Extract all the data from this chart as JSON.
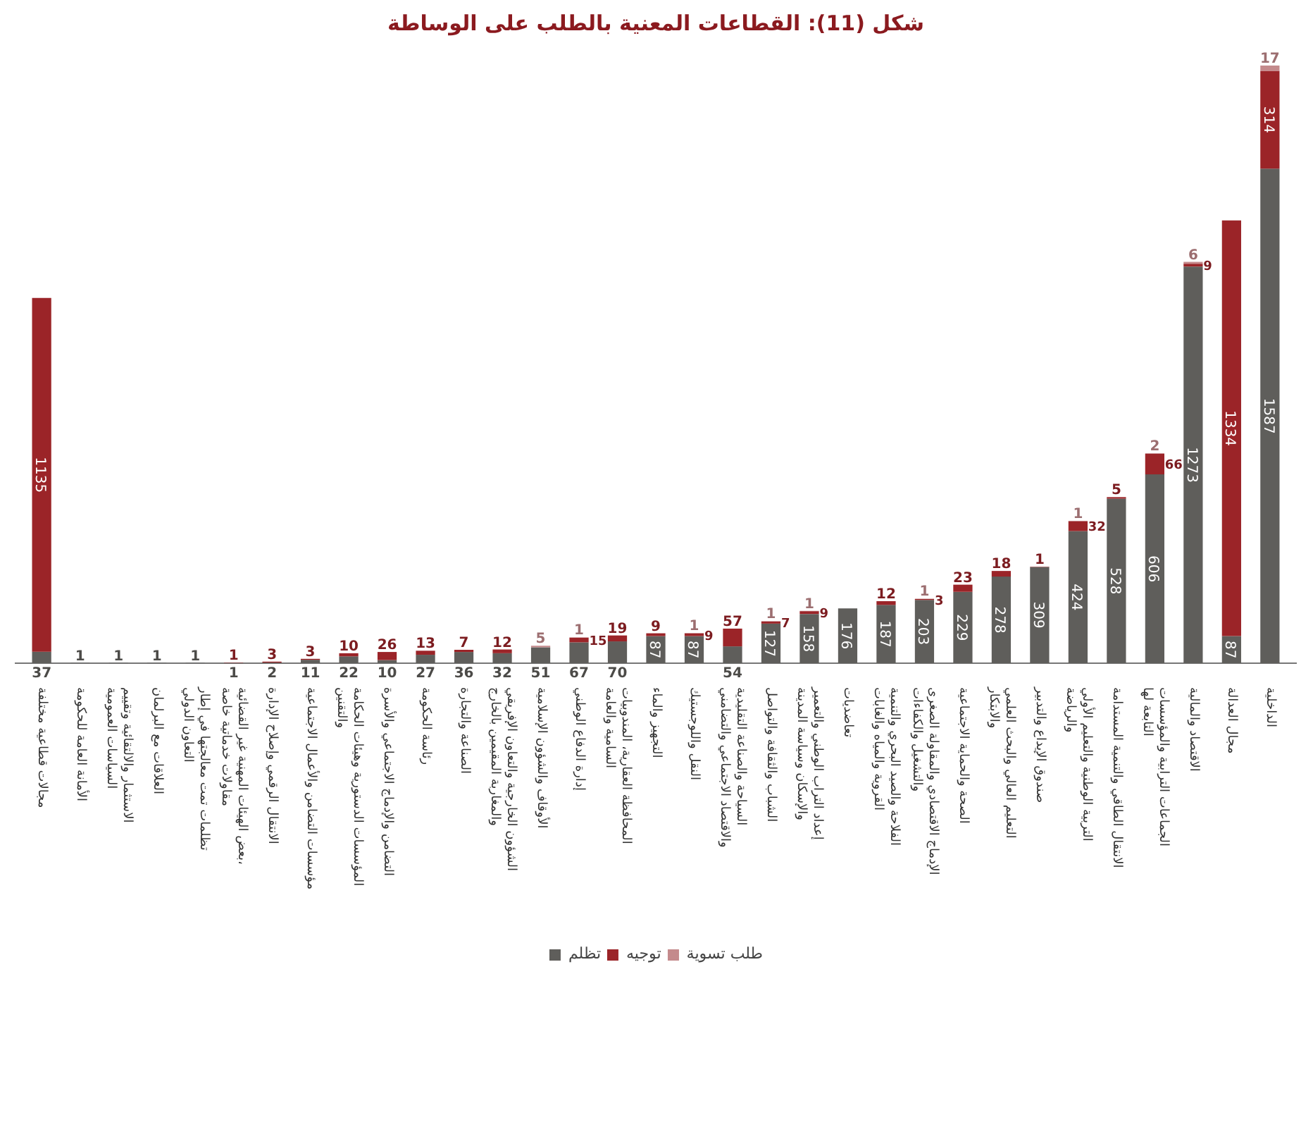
{
  "chart_data": {
    "type": "bar",
    "title": "شكل (11): القطاعات المعنية بالطلب على الوساطة",
    "stacked": true,
    "data_labels": true,
    "legend": "bottom",
    "grid": false,
    "tick_labels": "x",
    "categories": [
      "مجالات قطاعية مختلفة",
      "الأمانة العامة للحكومة",
      "الاستثمار والالتقائية وتقييم السياسات العمومية",
      "العلاقات مع البرلمان",
      "تظلمات تمت معالجتها في إطار التعاون الدولي",
      "بعض الهيئات المهنية غير القضائية، مقاولات خدماتية خاصة",
      "الانتقال الرقمي وإصلاح الإدارة",
      "مؤسسات التضامن والأعمال الاجتماعية",
      "المؤسسات الدستورية وهيئات الحكامة والتقنين",
      "التضامن والإدماج الاجتماعي والأسرة",
      "رئاسة الحكومة",
      "الصناعة والتجارة",
      "الشؤون الخارجية والتعاون الإفريقي والمغاربة المقيمين بالخارج",
      "الأوقاف والشؤون الإسلامية",
      "إدارة الدفاع الوطني",
      "المحافظة العقارية، المندوبيات السامية والعامة",
      "التجهيز والماء",
      "النقل واللوجستيك",
      "السياحة والصناعة التقليدية والاقتصاد الاجتماعي والتضامني",
      "الشباب والثقافة والتواصل",
      "إعداد التراب الوطني والتعمير والإسكان وسياسة المدينة",
      "تعاضديات",
      "الفلاحة والصيد البحري والتنمية القروية والمياه والغابات",
      "الإدماج الاقتصادي والمقاولة الصغرى والتشغيل والكفاءات",
      "الصحة والحماية الاجتماعية",
      "التعليم العالي والبحث العلمي والابتكار",
      "صندوق الإيداع والتدبير",
      "التربية الوطنية والتعليم الأولي والرياضة",
      "الانتقال الطاقي والتنمية المستدامة",
      "الجماعات الترابية والمؤسسات التابعة لها",
      "الاقتصاد والمالية",
      "مجال العدالة",
      "الداخلية"
    ],
    "series": [
      {
        "name": "تظلم",
        "color": "#5f5e5b",
        "values": [
          37,
          1,
          1,
          1,
          1,
          1,
          2,
          11,
          22,
          10,
          27,
          36,
          32,
          51,
          67,
          70,
          87,
          87,
          54,
          127,
          158,
          176,
          187,
          203,
          229,
          278,
          309,
          424,
          528,
          606,
          1273,
          87,
          1587
        ]
      },
      {
        "name": "توجيه",
        "color": "#9b2428",
        "values": [
          1135,
          null,
          null,
          null,
          null,
          1,
          3,
          3,
          10,
          26,
          13,
          7,
          12,
          null,
          15,
          19,
          9,
          9,
          57,
          7,
          9,
          null,
          12,
          3,
          23,
          18,
          1,
          32,
          5,
          66,
          9,
          1334,
          314
        ]
      },
      {
        "name": "طلب تسوية",
        "color": "#c48a8c",
        "values": [
          null,
          null,
          null,
          null,
          null,
          null,
          null,
          null,
          null,
          null,
          null,
          null,
          null,
          5,
          1,
          null,
          null,
          1,
          null,
          1,
          1,
          null,
          null,
          1,
          null,
          null,
          null,
          1,
          null,
          2,
          6,
          null,
          17
        ]
      }
    ]
  }
}
